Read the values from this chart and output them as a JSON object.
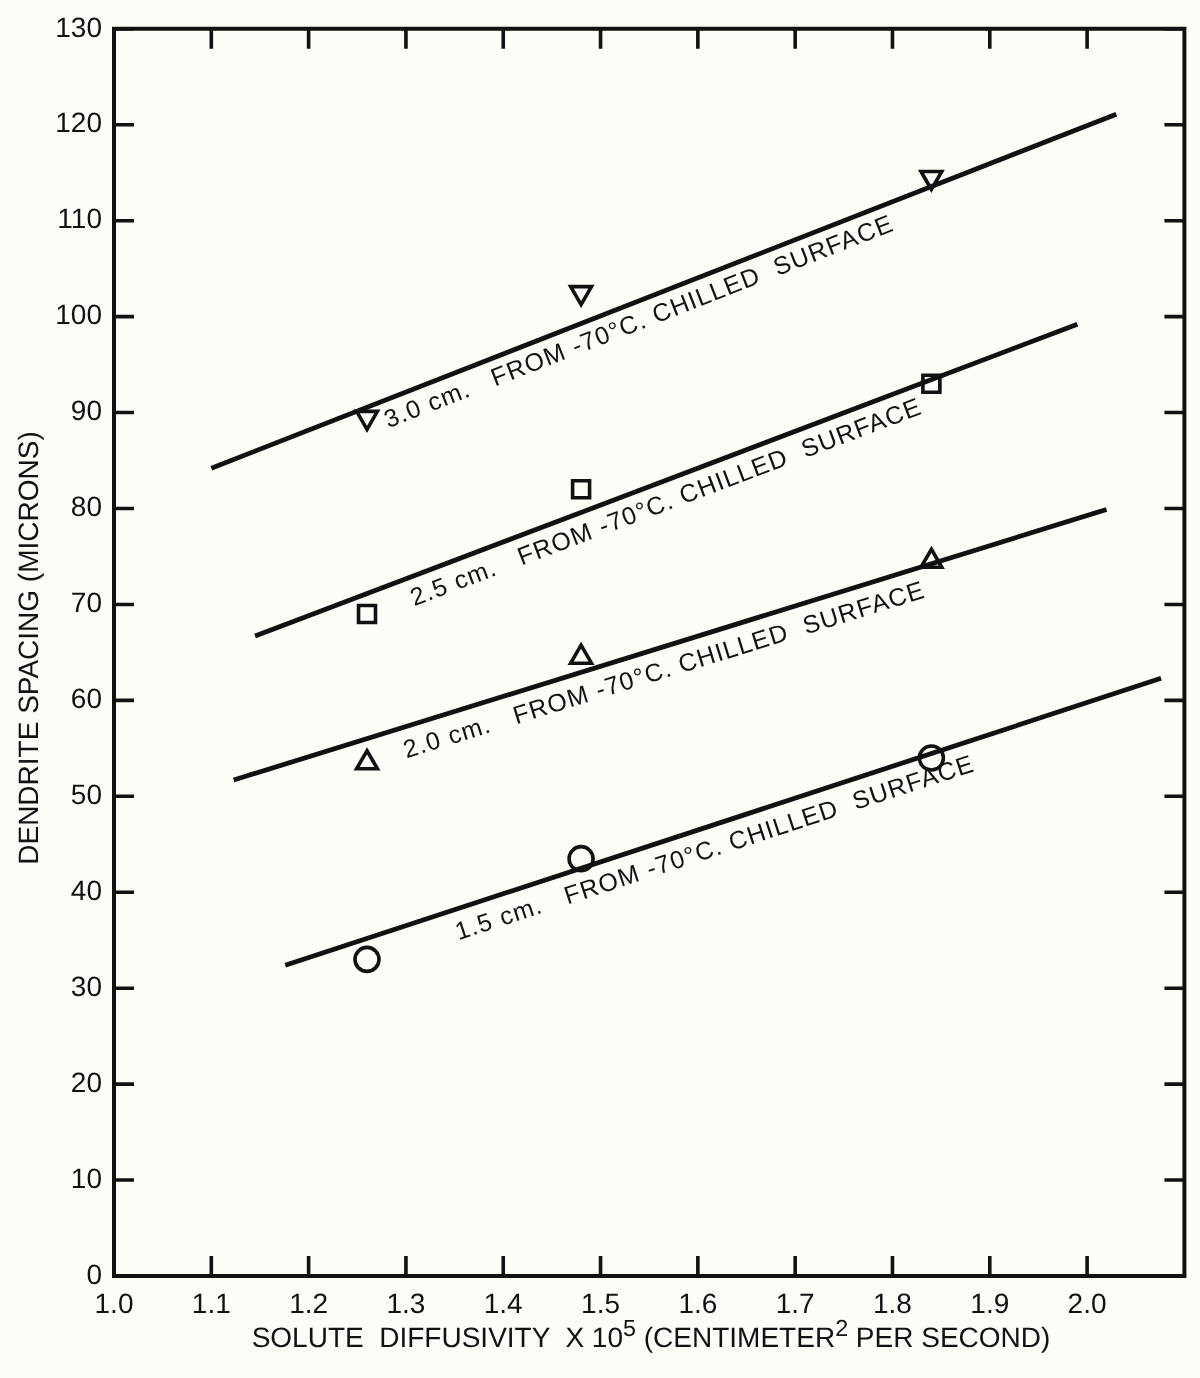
{
  "chart_data": {
    "type": "scatter",
    "xlabel": "SOLUTE  DIFFUSIVITY  X 10$^{5}$ (CENTIMETER$^{2}$ PER SECOND)",
    "ylabel": "DENDRITE SPACING (MICRONS)",
    "xlim": [
      1.0,
      2.1
    ],
    "xticks": [
      {
        "value": 1.0,
        "label": "1.0"
      },
      1.1,
      1.2,
      1.3,
      1.4,
      1.5,
      1.6,
      1.7,
      1.8,
      1.9,
      {
        "value": 2.0,
        "label": "2.0"
      }
    ],
    "ylim": [
      0,
      130
    ],
    "yticks": [
      0,
      10,
      20,
      30,
      40,
      50,
      60,
      70,
      80,
      90,
      100,
      110,
      120,
      130
    ],
    "grid": false,
    "legend": false,
    "series": [
      {
        "marker": "circle",
        "color": "#111111",
        "x": [
          1.26,
          1.48,
          1.84
        ],
        "values": [
          33,
          43.5,
          54
        ]
      },
      {
        "marker": "triangle",
        "color": "#111111",
        "x": [
          1.26,
          1.48,
          1.84
        ],
        "values": [
          53.5,
          64.5,
          74.5
        ]
      },
      {
        "marker": "square",
        "color": "#111111",
        "x": [
          1.26,
          1.48,
          1.84
        ],
        "values": [
          69,
          82,
          93
        ]
      },
      {
        "marker": "triangle_down",
        "color": "#111111",
        "x": [
          1.26,
          1.48,
          1.84
        ],
        "values": [
          89.5,
          102.5,
          114.5
        ]
      },
      {
        "type": "line",
        "marker": "none",
        "color": "#111111",
        "x": [
          1.176,
          2.076
        ],
        "values": [
          32.4,
          62.3
        ]
      },
      {
        "type": "line",
        "marker": "none",
        "color": "#111111",
        "x": [
          1.123,
          2.02
        ],
        "values": [
          51.7,
          79.9
        ]
      },
      {
        "type": "line",
        "marker": "none",
        "color": "#111111",
        "x": [
          1.145,
          1.99
        ],
        "values": [
          66.7,
          99.2
        ]
      },
      {
        "type": "line",
        "marker": "none",
        "color": "#111111",
        "x": [
          1.1,
          2.03
        ],
        "values": [
          84.2,
          121.1
        ]
      }
    ],
    "annotations": [
      "1.5 cm.   FROM -70°C. CHILLED  SURFACE",
      "2.0 cm.   FROM -70°C. CHILLED  SURFACE",
      "2.5 cm.   FROM -70°C. CHILLED  SURFACE",
      "3.0 cm.   FROM -70°C. CHILLED  SURFACE"
    ]
  }
}
